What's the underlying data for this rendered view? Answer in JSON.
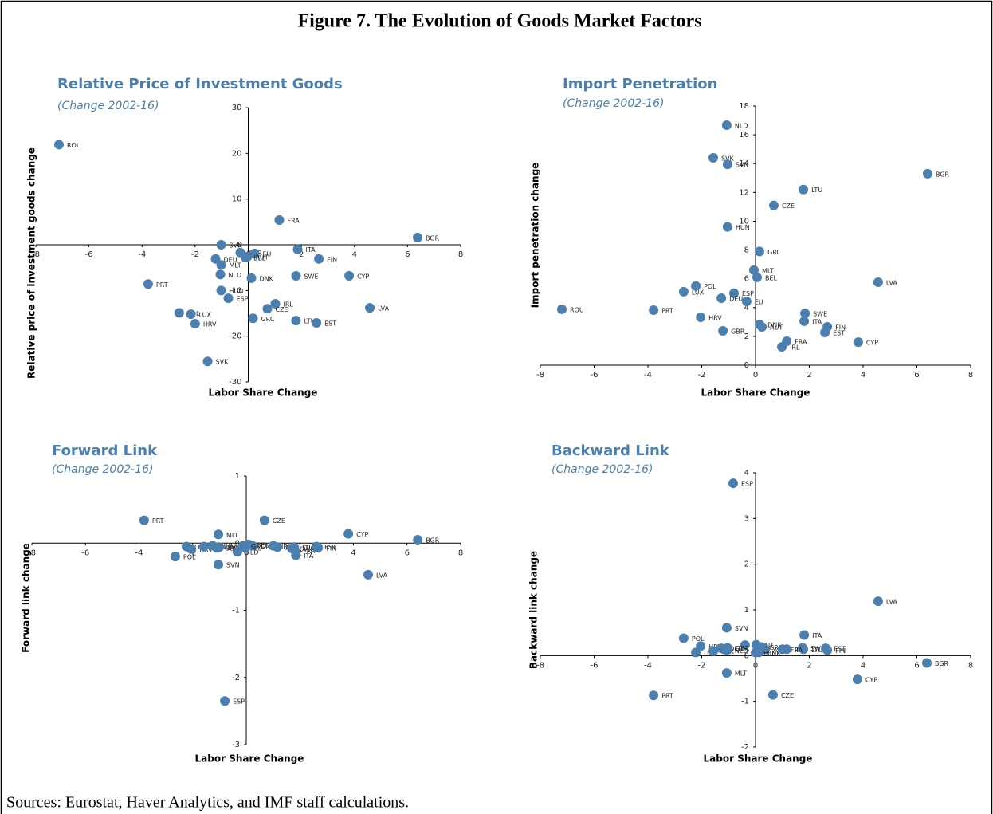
{
  "figure_title": "Figure 7. The Evolution of Goods Market Factors",
  "source": "Sources: Eurostat, Haver Analytics, and IMF staff calculations.",
  "chart_data": [
    {
      "type": "scatter",
      "title": "Relative Price of Investment Goods",
      "subtitle": "(Change 2002-16)",
      "x_label": "Labor Share Change",
      "y_label": "Relative price of investment goods change",
      "color": "#4a7fb0",
      "xlim": [
        -8,
        8
      ],
      "ylim": [
        -30,
        30
      ],
      "xticks": [
        -8,
        -6,
        -4,
        -2,
        0,
        2,
        4,
        6,
        8
      ],
      "yticks": [
        -30,
        -20,
        -10,
        0,
        10,
        20,
        30
      ],
      "point_labels": [
        "ROU",
        "FRA",
        "BGR",
        "SVN",
        "GBR",
        "EU",
        "ITA",
        "AUT",
        "FIN",
        "DEU",
        "MLT",
        "BEL",
        "NLD",
        "DNK",
        "SWE",
        "CYP",
        "PRT",
        "HUN",
        "ESP",
        "IRL",
        "CZE",
        "LVA",
        "POL",
        "LUX",
        "HRV",
        "GRC",
        "LTU",
        "EST",
        "SVK"
      ],
      "x": [
        -7.13,
        1.17,
        6.38,
        -1.02,
        -0.3,
        0.24,
        1.86,
        -0.03,
        2.66,
        -1.23,
        -1.02,
        -0.1,
        -1.05,
        0.12,
        1.8,
        3.8,
        -3.77,
        -1.02,
        -0.75,
        1.02,
        0.72,
        4.58,
        -2.6,
        -2.16,
        -2.0,
        0.18,
        1.8,
        2.57,
        -1.53
      ],
      "values": [
        21.9,
        5.4,
        1.6,
        0,
        -1.7,
        -1.9,
        -1.0,
        -2.6,
        -3.1,
        -3.1,
        -4.4,
        -2.8,
        -6.5,
        -7.3,
        -6.8,
        -6.8,
        -8.6,
        -10,
        -11.7,
        -12.9,
        -14,
        -13.8,
        -14.9,
        -15.2,
        -17.3,
        -16.1,
        -16.6,
        -17.1,
        -25.5
      ]
    },
    {
      "type": "scatter",
      "title": "Import Penetration",
      "subtitle": "(Change 2002-16)",
      "x_label": "Labor Share Change",
      "y_label": "Import penetration  change",
      "color": "#4a7fb0",
      "xlim": [
        -8,
        8
      ],
      "ylim": [
        0,
        18
      ],
      "xticks": [
        -8,
        -6,
        -4,
        -2,
        0,
        2,
        4,
        6,
        8
      ],
      "yticks": [
        0,
        2,
        4,
        6,
        8,
        10,
        12,
        14,
        16,
        18
      ],
      "point_labels": [
        "NLD",
        "SVK",
        "SVN",
        "BGR",
        "LTU",
        "CZE",
        "HUN",
        "GRC",
        "MLT",
        "BEL",
        "POL",
        "LUX",
        "ESP",
        "LVA",
        "DEU",
        "EU",
        "ROU",
        "PRT",
        "HRV",
        "SWE",
        "ITA",
        "DNK",
        "AUT",
        "GBR",
        "FIN",
        "EST",
        "CYP",
        "FRA",
        "IRL"
      ],
      "x": [
        -1.07,
        -1.57,
        -1.04,
        6.4,
        1.78,
        0.68,
        -1.04,
        0.15,
        -0.06,
        0.06,
        -2.22,
        -2.67,
        -0.8,
        4.56,
        -1.27,
        -0.33,
        -7.2,
        -3.79,
        -2.04,
        1.84,
        1.81,
        0.15,
        0.24,
        -1.21,
        2.67,
        2.58,
        3.82,
        1.16,
        0.98
      ],
      "values": [
        16.67,
        14.4,
        13.95,
        13.3,
        12.2,
        11.1,
        9.6,
        7.9,
        6.6,
        6.1,
        5.5,
        5.1,
        5.0,
        5.76,
        4.65,
        4.43,
        3.88,
        3.82,
        3.32,
        3.6,
        3.05,
        2.82,
        2.66,
        2.38,
        2.66,
        2.27,
        1.6,
        1.66,
        1.27
      ]
    },
    {
      "type": "scatter",
      "title": "Forward Link",
      "subtitle": "(Change 2002-16)",
      "x_label": "Labor Share Change",
      "y_label": "Forward link change",
      "color": "#4a7fb0",
      "xlim": [
        -8,
        8
      ],
      "ylim": [
        -3,
        1
      ],
      "xticks": [
        -8,
        -6,
        -4,
        -2,
        0,
        2,
        4,
        6,
        8
      ],
      "yticks": [
        -3,
        -2,
        -1,
        0,
        1
      ],
      "point_labels": [
        "PRT",
        "CZE",
        "MLT",
        "CYP",
        "BGR",
        "LUX",
        "HRV",
        "POL",
        "DEU",
        "HUN",
        "GBR",
        "SVK",
        "NLD",
        "SVN",
        "EU",
        "BEL",
        "DNK",
        "GRC",
        "IRL",
        "AUT",
        "LTU",
        "FRA",
        "ITA",
        "SWE",
        "EST",
        "FIN",
        "LVA",
        "ESP"
      ],
      "x": [
        -3.81,
        0.68,
        -1.04,
        3.81,
        6.4,
        -2.23,
        -2.05,
        -2.65,
        -1.58,
        -1.25,
        -1.1,
        -1.01,
        -0.33,
        -1.04,
        -0.03,
        0.09,
        0.24,
        -0.12,
        1.01,
        1.16,
        1.79,
        1.82,
        1.85,
        1.7,
        2.62,
        2.68,
        4.55,
        -0.8
      ],
      "values": [
        0.34,
        0.34,
        0.13,
        0.14,
        0.05,
        -0.05,
        -0.09,
        -0.2,
        -0.05,
        -0.04,
        -0.07,
        -0.06,
        -0.13,
        -0.32,
        -0.07,
        -0.02,
        -0.04,
        -0.04,
        -0.04,
        -0.06,
        -0.06,
        -0.11,
        -0.18,
        -0.08,
        -0.05,
        -0.07,
        -0.47,
        -2.35
      ]
    },
    {
      "type": "scatter",
      "title": "Backward Link",
      "subtitle": "(Change 2002-16)",
      "x_label": "Labor Share Change",
      "y_label": "Backward link change",
      "color": "#4a7fb0",
      "xlim": [
        -8,
        8
      ],
      "ylim": [
        -2,
        4
      ],
      "xticks": [
        -8,
        -6,
        -4,
        -2,
        0,
        2,
        4,
        6,
        8
      ],
      "yticks": [
        -2,
        -1,
        0,
        1,
        2,
        3,
        4
      ],
      "point_labels": [
        "ESP",
        "LVA",
        "SVN",
        "ITA",
        "POL",
        "HRV",
        "LUX",
        "DEU",
        "HUN",
        "EU",
        "GRC",
        "AUT",
        "IRL",
        "SWE",
        "LTU",
        "EST",
        "FIN",
        "GBR",
        "SVK",
        "NLD",
        "BEL",
        "DNK",
        "FRA",
        "BGR",
        "MLT",
        "CYP",
        "PRT",
        "CZE"
      ],
      "x": [
        -0.83,
        4.56,
        -1.07,
        1.81,
        -2.67,
        -2.04,
        -2.22,
        -1.27,
        -0.39,
        0.03,
        0.21,
        0.36,
        1.16,
        1.75,
        1.78,
        2.61,
        2.67,
        -1.04,
        -1.57,
        -1.07,
        0,
        0.12,
        1.0,
        6.37,
        -1.07,
        3.79,
        -3.79,
        0.65
      ],
      "values": [
        3.77,
        1.19,
        0.61,
        0.45,
        0.38,
        0.21,
        0.07,
        0.16,
        0.23,
        0.24,
        0.19,
        0.14,
        0.14,
        0.17,
        0.14,
        0.16,
        0.12,
        0.17,
        0.1,
        0.12,
        0.07,
        0.07,
        0.14,
        -0.16,
        -0.38,
        -0.52,
        -0.87,
        -0.86
      ]
    }
  ]
}
